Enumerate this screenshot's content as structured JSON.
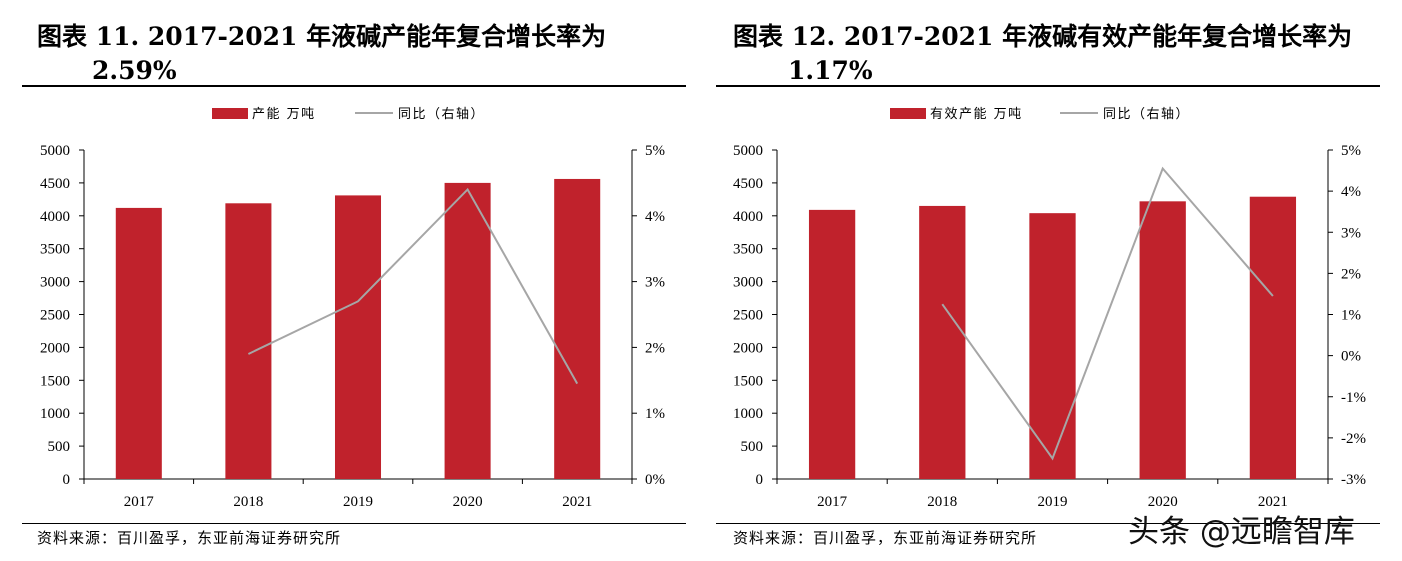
{
  "panels": [
    {
      "title_line1": "图表 11. 2017-2021 年液碱产能年复合增长率为",
      "title_line2": "2.59%",
      "source": "资料来源：百川盈孚，东亚前海证券研究所"
    },
    {
      "title_line1": "图表 12. 2017-2021 年液碱有效产能年复合增长率为",
      "title_line2": "1.17%",
      "source": "资料来源：百川盈孚，东亚前海证券研究所"
    }
  ],
  "watermark": "头条 @远瞻智库",
  "colors": {
    "bar": "#C0222C",
    "line": "#A6A6A6",
    "axis": "#000000"
  },
  "chart_data": [
    {
      "type": "bar",
      "categories": [
        "2017",
        "2018",
        "2019",
        "2020",
        "2021"
      ],
      "series": [
        {
          "name": "产能 万吨",
          "type": "bar",
          "axis": "left",
          "values": [
            4120,
            4190,
            4310,
            4500,
            4560
          ]
        },
        {
          "name": "同比（右轴）",
          "type": "line",
          "axis": "right",
          "values": [
            null,
            1.9,
            2.7,
            4.4,
            1.45
          ]
        }
      ],
      "y_left": {
        "min": 0,
        "max": 5000,
        "ticks": [
          "0",
          "500",
          "1000",
          "1500",
          "2000",
          "2500",
          "3000",
          "3500",
          "4000",
          "4500",
          "5000"
        ]
      },
      "y_right": {
        "min": 0,
        "max": 5,
        "ticks": [
          "0%",
          "1%",
          "2%",
          "3%",
          "4%",
          "5%"
        ]
      },
      "legend": "top-center",
      "grid": false
    },
    {
      "type": "bar",
      "categories": [
        "2017",
        "2018",
        "2019",
        "2020",
        "2021"
      ],
      "series": [
        {
          "name": "有效产能 万吨",
          "type": "bar",
          "axis": "left",
          "values": [
            4090,
            4150,
            4040,
            4220,
            4290
          ]
        },
        {
          "name": "同比（右轴）",
          "type": "line",
          "axis": "right",
          "values": [
            null,
            1.25,
            -2.5,
            4.55,
            1.45
          ]
        }
      ],
      "y_left": {
        "min": 0,
        "max": 5000,
        "ticks": [
          "0",
          "500",
          "1000",
          "1500",
          "2000",
          "2500",
          "3000",
          "3500",
          "4000",
          "4500",
          "5000"
        ]
      },
      "y_right": {
        "min": -3,
        "max": 5,
        "ticks": [
          "-3%",
          "-2%",
          "-1%",
          "0%",
          "1%",
          "2%",
          "3%",
          "4%",
          "5%"
        ]
      },
      "legend": "top-center",
      "grid": false
    }
  ]
}
